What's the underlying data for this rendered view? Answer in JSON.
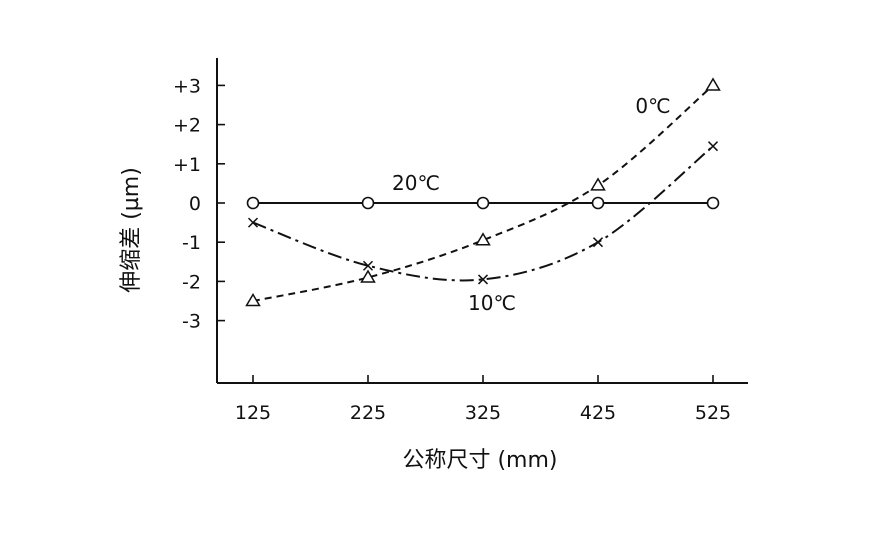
{
  "chart_data": {
    "type": "line",
    "xlabel": "公称尺寸 (mm)",
    "ylabel": "伸缩差 (µm)",
    "x": [
      125,
      225,
      325,
      425,
      525
    ],
    "x_tick_labels": [
      "125",
      "225",
      "325",
      "425",
      "525"
    ],
    "y_tick_values": [
      3,
      2,
      1,
      0,
      -1,
      -2,
      -3
    ],
    "y_tick_labels": [
      "+3",
      "+2",
      "+1",
      "0",
      "-1",
      "-2",
      "-3"
    ],
    "xlim": [
      95,
      560
    ],
    "ylim": [
      -4.6,
      3.2
    ],
    "grid": false,
    "series": [
      {
        "name": "20℃",
        "marker": "circle",
        "line_style": "solid",
        "values": [
          0,
          0,
          0,
          0,
          0
        ]
      },
      {
        "name": "0℃",
        "marker": "triangle",
        "line_style": "dashed",
        "values": [
          -2.5,
          -1.9,
          -0.95,
          0.45,
          3.0
        ]
      },
      {
        "name": "10℃",
        "marker": "cross",
        "line_style": "dash-dot",
        "values": [
          -0.5,
          -1.6,
          -1.95,
          -1.0,
          1.45
        ]
      }
    ]
  }
}
